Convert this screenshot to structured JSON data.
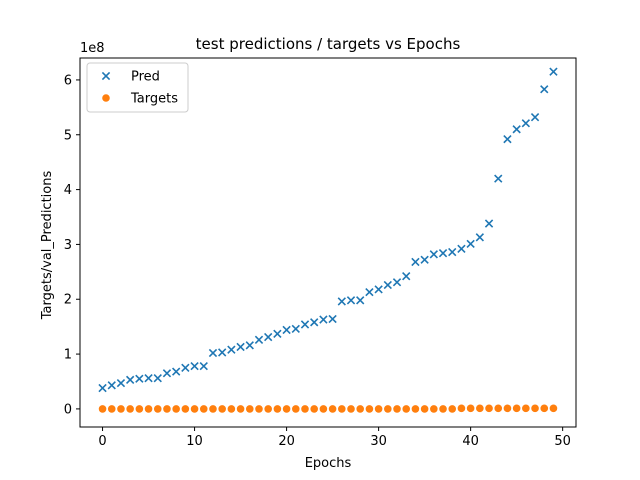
{
  "chart_data": {
    "type": "scatter",
    "title": "test predictions / targets vs Epochs",
    "xlabel": "Epochs",
    "ylabel": "Targets/val_Predictions",
    "y_offset_label": "1e8",
    "xlim": [
      -2.45,
      51.45
    ],
    "ylim": [
      -0.33,
      6.4
    ],
    "xticks": [
      0,
      10,
      20,
      30,
      40,
      50
    ],
    "yticks": [
      0,
      1,
      2,
      3,
      4,
      5,
      6
    ],
    "grid": false,
    "legend_position": "upper-left",
    "series": [
      {
        "name": "Pred",
        "marker": "x",
        "color": "#1f77b4",
        "x": [
          0,
          1,
          2,
          3,
          4,
          5,
          6,
          7,
          8,
          9,
          10,
          11,
          12,
          13,
          14,
          15,
          16,
          17,
          18,
          19,
          20,
          21,
          22,
          23,
          24,
          25,
          26,
          27,
          28,
          29,
          30,
          31,
          32,
          33,
          34,
          35,
          36,
          37,
          38,
          39,
          40,
          41,
          42,
          43,
          44,
          45,
          46,
          47,
          48,
          49
        ],
        "y": [
          0.38,
          0.43,
          0.47,
          0.53,
          0.55,
          0.56,
          0.56,
          0.65,
          0.68,
          0.75,
          0.78,
          0.78,
          1.02,
          1.03,
          1.08,
          1.13,
          1.16,
          1.26,
          1.31,
          1.37,
          1.44,
          1.46,
          1.54,
          1.58,
          1.63,
          1.64,
          1.96,
          1.98,
          1.98,
          2.13,
          2.18,
          2.26,
          2.31,
          2.42,
          2.68,
          2.72,
          2.82,
          2.84,
          2.86,
          2.92,
          3.01,
          3.13,
          3.38,
          4.2,
          4.92,
          5.1,
          5.21,
          5.32,
          5.83,
          6.15
        ]
      },
      {
        "name": "Targets",
        "marker": "o",
        "color": "#ff7f0e",
        "x": [
          0,
          1,
          2,
          3,
          4,
          5,
          6,
          7,
          8,
          9,
          10,
          11,
          12,
          13,
          14,
          15,
          16,
          17,
          18,
          19,
          20,
          21,
          22,
          23,
          24,
          25,
          26,
          27,
          28,
          29,
          30,
          31,
          32,
          33,
          34,
          35,
          36,
          37,
          38,
          39,
          40,
          41,
          42,
          43,
          44,
          45,
          46,
          47,
          48,
          49
        ],
        "y": [
          0,
          0,
          0,
          0,
          0,
          0,
          0,
          0,
          0,
          0,
          0,
          0,
          0,
          0,
          0,
          0,
          0,
          0,
          0,
          0,
          0,
          0,
          0,
          0,
          0,
          0,
          0,
          0,
          0,
          0,
          0,
          0,
          0,
          0,
          0,
          0,
          0,
          0,
          0,
          0.01,
          0.01,
          0.01,
          0.01,
          0.01,
          0.01,
          0.01,
          0.01,
          0.01,
          0.01,
          0.01
        ]
      }
    ]
  }
}
